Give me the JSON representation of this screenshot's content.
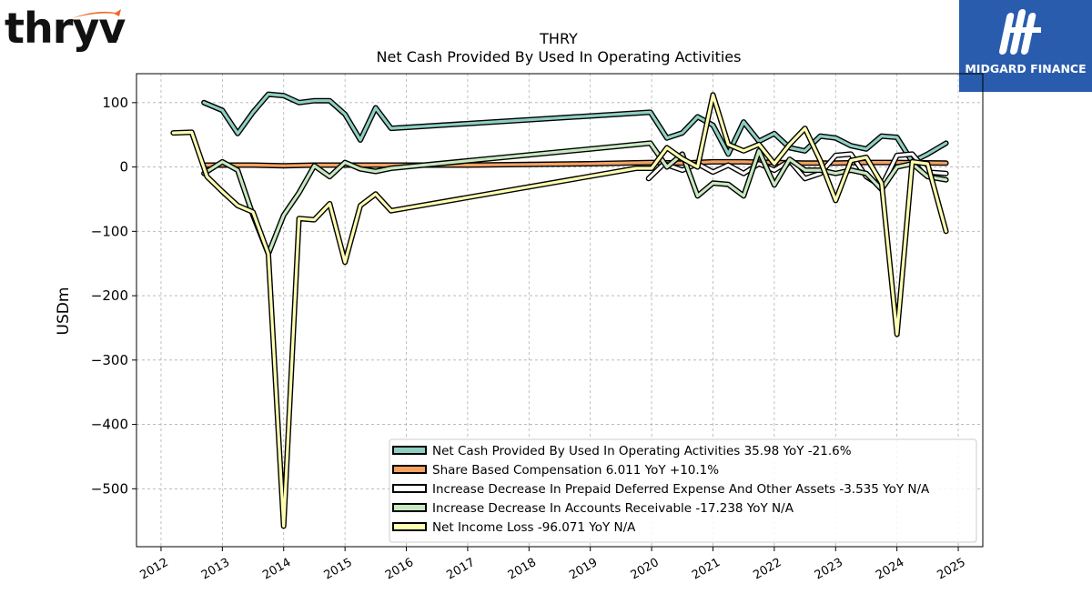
{
  "brand": {
    "logo_text": "thryv",
    "reg_mark": "®"
  },
  "publisher": {
    "name": "MIDGARD FINANCE"
  },
  "chart_data": {
    "type": "line",
    "title": "THRY",
    "subtitle": "Net Cash Provided By Used In Operating Activities",
    "ylabel": "USDm",
    "xlabel": "",
    "xlim": [
      2011.6,
      2025.4
    ],
    "ylim": [
      -590,
      145
    ],
    "x_ticks": [
      "2012",
      "2013",
      "2014",
      "2015",
      "2016",
      "2017",
      "2018",
      "2019",
      "2020",
      "2021",
      "2022",
      "2023",
      "2024",
      "2025"
    ],
    "y_ticks": [
      100,
      0,
      -100,
      -200,
      -300,
      -400,
      -500
    ],
    "y_tick_labels": [
      "100",
      "0",
      "−100",
      "−200",
      "−300",
      "−400",
      "−500"
    ],
    "grid": true,
    "legend_position": "lower-right",
    "series": [
      {
        "name": "Net Cash Provided By Used In Operating Activities",
        "legend_label": "Net Cash Provided By Used In Operating Activities  35.98 YoY -21.6%",
        "color": "#8ecfc1",
        "x": [
          2012.7,
          2013.0,
          2013.25,
          2013.5,
          2013.75,
          2014.0,
          2014.25,
          2014.5,
          2014.75,
          2015.0,
          2015.25,
          2015.5,
          2015.75,
          2019.98,
          2020.25,
          2020.5,
          2020.75,
          2021.0,
          2021.25,
          2021.5,
          2021.75,
          2022.0,
          2022.25,
          2022.5,
          2022.75,
          2023.0,
          2023.25,
          2023.5,
          2023.75,
          2024.0,
          2024.25,
          2024.5,
          2024.8
        ],
        "y": [
          100,
          88,
          52,
          85,
          113,
          111,
          100,
          103,
          103,
          82,
          42,
          92,
          60,
          85,
          45,
          53,
          78,
          65,
          20,
          70,
          40,
          52,
          30,
          25,
          48,
          45,
          33,
          28,
          48,
          46,
          8,
          20,
          37
        ]
      },
      {
        "name": "Share Based Compensation",
        "legend_label": "Share Based Compensation  6.011 YoY +10.1%",
        "color": "#f4a261",
        "x": [
          2012.7,
          2013.0,
          2013.5,
          2014.0,
          2014.5,
          2015.0,
          2016.0,
          2017.0,
          2018.0,
          2019.0,
          2020.0,
          2020.5,
          2021.0,
          2021.5,
          2022.0,
          2022.5,
          2023.0,
          2023.5,
          2024.0,
          2024.8
        ],
        "y": [
          3,
          3,
          3,
          2,
          3,
          3,
          3,
          3,
          4,
          5,
          7,
          6,
          8,
          8,
          7,
          6,
          6,
          7,
          7,
          6
        ]
      },
      {
        "name": "Increase Decrease In Prepaid Deferred Expense And Other Assets",
        "legend_label": "Increase Decrease In Prepaid Deferred Expense And Other Assets  -3.535 YoY N/A",
        "color": "#ffffff",
        "x": [
          2019.95,
          2020.2,
          2020.5,
          2020.75,
          2021.0,
          2021.25,
          2021.5,
          2021.75,
          2022.0,
          2022.25,
          2022.5,
          2022.75,
          2023.0,
          2023.25,
          2023.5,
          2023.75,
          2024.0,
          2024.25,
          2024.5,
          2024.8
        ],
        "y": [
          -18,
          5,
          -5,
          5,
          -8,
          3,
          -10,
          5,
          -5,
          10,
          -18,
          -10,
          18,
          20,
          -15,
          -30,
          18,
          20,
          -8,
          -10
        ]
      },
      {
        "name": "Increase Decrease In Accounts Receivable",
        "legend_label": "Increase Decrease In Accounts Receivable  -17.238 YoY N/A",
        "color": "#c7e9c0",
        "x": [
          2012.7,
          2013.0,
          2013.25,
          2013.5,
          2013.75,
          2014.0,
          2014.25,
          2014.5,
          2014.75,
          2015.0,
          2015.25,
          2015.5,
          2015.75,
          2019.98,
          2020.25,
          2020.5,
          2020.75,
          2021.0,
          2021.25,
          2021.5,
          2021.75,
          2022.0,
          2022.25,
          2022.5,
          2022.75,
          2023.0,
          2023.25,
          2023.5,
          2023.75,
          2024.0,
          2024.25,
          2024.5,
          2024.8
        ],
        "y": [
          -10,
          8,
          -5,
          -75,
          -135,
          -75,
          -40,
          2,
          -15,
          7,
          -3,
          -7,
          -2,
          37,
          0,
          20,
          -45,
          -25,
          -27,
          -45,
          25,
          -28,
          12,
          -5,
          -5,
          -10,
          -5,
          -10,
          -35,
          0,
          5,
          -15,
          -20
        ]
      },
      {
        "name": "Net Income Loss",
        "legend_label": "Net Income Loss  -96.071 YoY N/A",
        "color": "#ffffb2",
        "x": [
          2012.2,
          2012.5,
          2012.75,
          2013.0,
          2013.25,
          2013.5,
          2013.75,
          2014.0,
          2014.25,
          2014.5,
          2014.75,
          2015.0,
          2015.25,
          2015.5,
          2015.75,
          2019.75,
          2020.0,
          2020.25,
          2020.5,
          2020.75,
          2021.0,
          2021.25,
          2021.5,
          2021.75,
          2022.0,
          2022.25,
          2022.5,
          2022.75,
          2023.0,
          2023.25,
          2023.5,
          2023.75,
          2024.0,
          2024.25,
          2024.5,
          2024.8
        ],
        "y": [
          53,
          54,
          -15,
          -38,
          -60,
          -70,
          -135,
          -558,
          -80,
          -82,
          -57,
          -148,
          -60,
          -42,
          -68,
          -2,
          -2,
          30,
          13,
          0,
          112,
          35,
          25,
          35,
          5,
          35,
          60,
          10,
          -52,
          10,
          15,
          -25,
          -260,
          8,
          5,
          -100
        ]
      }
    ]
  }
}
